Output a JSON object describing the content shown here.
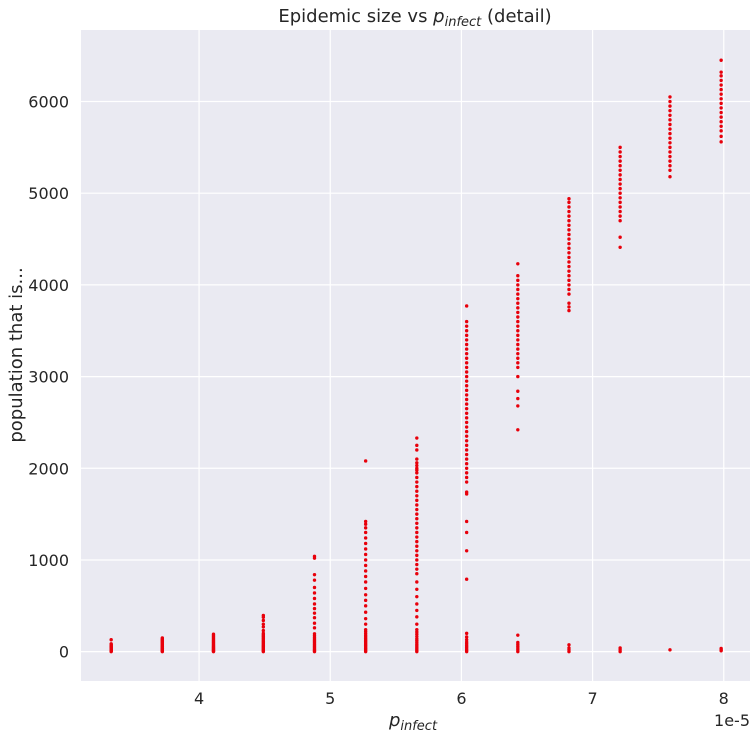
{
  "chart_data": {
    "type": "scatter",
    "title_prefix": "Epidemic size vs ",
    "title_var": "p",
    "title_sub": "infect",
    "title_suffix": " (detail)",
    "xlabel_var": "p",
    "xlabel_sub": "infect",
    "ylabel": "population that is...",
    "x_offset_text": "1e-5",
    "x_ticks": [
      4,
      5,
      6,
      7,
      8
    ],
    "y_ticks": [
      0,
      1000,
      2000,
      3000,
      4000,
      5000,
      6000
    ],
    "xlim": [
      3.1,
      8.2
    ],
    "ylim": [
      -320,
      6780
    ],
    "x_unit_scale": 1e-05,
    "grid": true,
    "marker_color": "#e8000b",
    "background": "#eaeaf2",
    "columns": [
      {
        "x": 3.33,
        "values": [
          0,
          4,
          8,
          12,
          16,
          20,
          25,
          30,
          36,
          42,
          48,
          55,
          62,
          70,
          78,
          85,
          130
        ]
      },
      {
        "x": 3.72,
        "values": [
          0,
          5,
          10,
          15,
          20,
          26,
          32,
          38,
          45,
          52,
          60,
          68,
          76,
          85,
          94,
          102,
          110,
          118,
          125,
          132,
          140,
          150
        ]
      },
      {
        "x": 4.11,
        "values": [
          0,
          6,
          12,
          18,
          25,
          32,
          40,
          48,
          56,
          65,
          74,
          84,
          94,
          104,
          115,
          126,
          138,
          150,
          162,
          175,
          190
        ]
      },
      {
        "x": 4.49,
        "values": [
          0,
          8,
          16,
          25,
          35,
          45,
          55,
          66,
          78,
          90,
          102,
          115,
          128,
          142,
          156,
          170,
          185,
          200,
          230,
          270,
          300,
          340,
          375,
          395
        ]
      },
      {
        "x": 4.88,
        "values": [
          0,
          10,
          20,
          30,
          42,
          55,
          68,
          82,
          96,
          110,
          125,
          140,
          158,
          176,
          195,
          260,
          310,
          370,
          420,
          470,
          520,
          580,
          640,
          700,
          780,
          840,
          1020,
          1040
        ]
      },
      {
        "x": 5.27,
        "values": [
          0,
          12,
          25,
          38,
          52,
          66,
          80,
          95,
          110,
          126,
          142,
          160,
          178,
          198,
          220,
          240,
          300,
          360,
          430,
          500,
          560,
          620,
          690,
          760,
          820,
          880,
          940,
          1000,
          1060,
          1120,
          1180,
          1240,
          1300,
          1350,
          1390,
          1420,
          2080
        ]
      },
      {
        "x": 5.66,
        "values": [
          0,
          15,
          30,
          45,
          62,
          80,
          100,
          120,
          140,
          165,
          190,
          215,
          240,
          300,
          380,
          450,
          520,
          600,
          680,
          760,
          850,
          900,
          950,
          1000,
          1050,
          1100,
          1150,
          1200,
          1250,
          1300,
          1350,
          1400,
          1450,
          1500,
          1550,
          1600,
          1650,
          1700,
          1750,
          1800,
          1850,
          1900,
          1950,
          1980,
          2000,
          2030,
          2060,
          2100,
          2200,
          2250,
          2330
        ]
      },
      {
        "x": 6.04,
        "values": [
          0,
          15,
          30,
          48,
          65,
          85,
          105,
          130,
          160,
          200,
          790,
          1100,
          1300,
          1420,
          1720,
          1740,
          1850,
          1900,
          1950,
          2000,
          2050,
          2100,
          2150,
          2200,
          2250,
          2300,
          2350,
          2400,
          2450,
          2500,
          2550,
          2600,
          2650,
          2700,
          2750,
          2800,
          2850,
          2900,
          2950,
          3000,
          3050,
          3100,
          3150,
          3200,
          3250,
          3300,
          3350,
          3400,
          3450,
          3500,
          3550,
          3600,
          3770
        ]
      },
      {
        "x": 6.43,
        "values": [
          0,
          20,
          40,
          60,
          80,
          100,
          180,
          2420,
          2680,
          2760,
          2840,
          3000,
          3100,
          3150,
          3200,
          3250,
          3300,
          3350,
          3400,
          3450,
          3500,
          3550,
          3600,
          3650,
          3700,
          3750,
          3800,
          3850,
          3900,
          3950,
          4000,
          4050,
          4100,
          4230
        ]
      },
      {
        "x": 6.82,
        "values": [
          0,
          20,
          40,
          75,
          3720,
          3760,
          3800,
          3900,
          3950,
          4000,
          4050,
          4100,
          4150,
          4200,
          4250,
          4300,
          4350,
          4400,
          4450,
          4500,
          4550,
          4600,
          4650,
          4700,
          4750,
          4800,
          4850,
          4900,
          4940
        ]
      },
      {
        "x": 7.21,
        "values": [
          0,
          20,
          40,
          4410,
          4520,
          4700,
          4750,
          4800,
          4850,
          4900,
          4950,
          5000,
          5050,
          5100,
          5150,
          5200,
          5250,
          5300,
          5350,
          5400,
          5450,
          5500
        ]
      },
      {
        "x": 7.59,
        "values": [
          20,
          5180,
          5250,
          5300,
          5350,
          5400,
          5450,
          5500,
          5550,
          5600,
          5650,
          5700,
          5750,
          5800,
          5850,
          5900,
          5950,
          6000,
          6050
        ]
      },
      {
        "x": 7.98,
        "values": [
          10,
          20,
          35,
          5560,
          5620,
          5680,
          5730,
          5780,
          5830,
          5880,
          5930,
          5980,
          6030,
          6080,
          6130,
          6180,
          6230,
          6280,
          6320,
          6450
        ]
      }
    ]
  }
}
